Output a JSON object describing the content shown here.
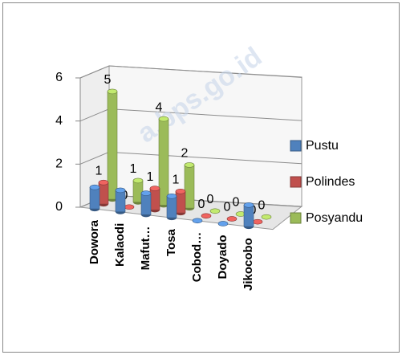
{
  "chart_data": {
    "type": "bar3d",
    "watermark": "a.bps.go.id",
    "categories": [
      "Dowora",
      "Kalaodi",
      "Mafut…",
      "Tosa",
      "Cobod…",
      "Doyado",
      "Jikocobo"
    ],
    "series": [
      {
        "name": "Pustu",
        "color": "#4f81bd",
        "values": [
          1,
          1,
          1,
          1,
          0,
          0,
          1
        ],
        "data_labels": false
      },
      {
        "name": "Polindes",
        "color": "#c0504d",
        "values": [
          1,
          0,
          1,
          1,
          0,
          0,
          0
        ],
        "data_labels": true
      },
      {
        "name": "Posyandu",
        "color": "#9bbb59",
        "values": [
          5,
          1,
          4,
          2,
          0,
          0,
          0
        ],
        "data_labels": true
      }
    ],
    "ylim": [
      0,
      6
    ],
    "yticks": [
      0,
      2,
      4,
      6
    ],
    "grid": true,
    "legend": "right"
  }
}
